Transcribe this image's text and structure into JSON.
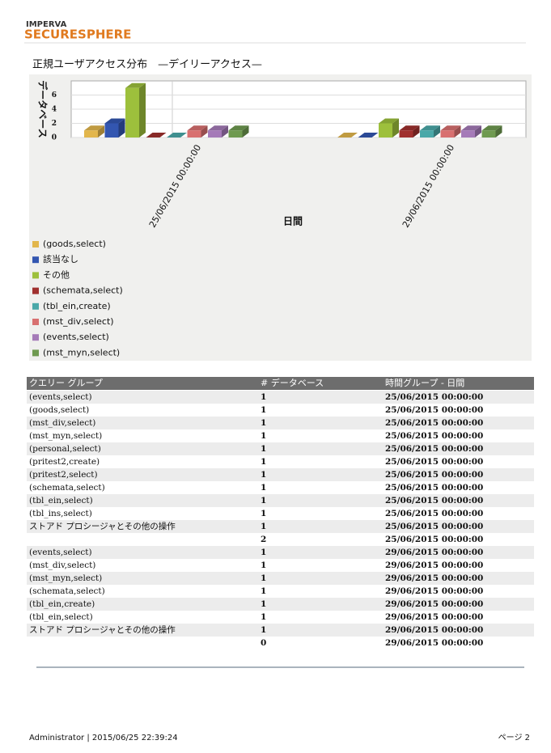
{
  "header": {
    "brand": "IMPERVA",
    "product": "SECURESPHERE"
  },
  "chart_data": {
    "type": "bar",
    "title": "正規ユーザアクセス分布　—デイリーアクセス—",
    "xlabel": "日間",
    "ylabel": "データベース",
    "categories": [
      "25/06/2015 00:00:00",
      "29/06/2015 00:00:00"
    ],
    "series": [
      {
        "name": "(goods,select)",
        "color": "#e2b64c",
        "values": [
          1,
          0
        ]
      },
      {
        "name": "該当なし",
        "color": "#3356b0",
        "values": [
          2,
          0
        ]
      },
      {
        "name": "その他",
        "color": "#9dc03c",
        "values": [
          7,
          2
        ]
      },
      {
        "name": "(schemata,select)",
        "color": "#a0302e",
        "values": [
          0,
          1
        ]
      },
      {
        "name": "(tbl_ein,create)",
        "color": "#4aa8a8",
        "values": [
          0,
          1
        ]
      },
      {
        "name": "(mst_div,select)",
        "color": "#d87070",
        "values": [
          1,
          1
        ]
      },
      {
        "name": "(events,select)",
        "color": "#a57ab8",
        "values": [
          1,
          1
        ]
      },
      {
        "name": "(mst_myn,select)",
        "color": "#6f9a50",
        "values": [
          1,
          1
        ]
      }
    ],
    "ylim": [
      0,
      8
    ],
    "yticks": [
      0,
      2,
      4,
      6
    ],
    "grid": true
  },
  "table": {
    "columns": [
      "クエリー グループ",
      "# データベース",
      "時間グループ - 日間"
    ],
    "rows": [
      [
        "(events,select)",
        1,
        "25/06/2015 00:00:00"
      ],
      [
        "(goods,select)",
        1,
        "25/06/2015 00:00:00"
      ],
      [
        "(mst_div,select)",
        1,
        "25/06/2015 00:00:00"
      ],
      [
        "(mst_myn,select)",
        1,
        "25/06/2015 00:00:00"
      ],
      [
        "(personal,select)",
        1,
        "25/06/2015 00:00:00"
      ],
      [
        "(pritest2,create)",
        1,
        "25/06/2015 00:00:00"
      ],
      [
        "(pritest2,select)",
        1,
        "25/06/2015 00:00:00"
      ],
      [
        "(schemata,select)",
        1,
        "25/06/2015 00:00:00"
      ],
      [
        "(tbl_ein,select)",
        1,
        "25/06/2015 00:00:00"
      ],
      [
        "(tbl_ins,select)",
        1,
        "25/06/2015 00:00:00"
      ],
      [
        "ストアド プロシージャとその他の操作",
        1,
        "25/06/2015 00:00:00"
      ],
      [
        null,
        2,
        "25/06/2015 00:00:00"
      ],
      [
        "(events,select)",
        1,
        "29/06/2015 00:00:00"
      ],
      [
        "(mst_div,select)",
        1,
        "29/06/2015 00:00:00"
      ],
      [
        "(mst_myn,select)",
        1,
        "29/06/2015 00:00:00"
      ],
      [
        "(schemata,select)",
        1,
        "29/06/2015 00:00:00"
      ],
      [
        "(tbl_ein,create)",
        1,
        "29/06/2015 00:00:00"
      ],
      [
        "(tbl_ein,select)",
        1,
        "29/06/2015 00:00:00"
      ],
      [
        "ストアド プロシージャとその他の操作",
        1,
        "29/06/2015 00:00:00"
      ],
      [
        null,
        0,
        "29/06/2015 00:00:00"
      ]
    ]
  },
  "footer": {
    "user": "Administrator | 2015/06/25 22:39:24",
    "page": "ページ 2"
  }
}
